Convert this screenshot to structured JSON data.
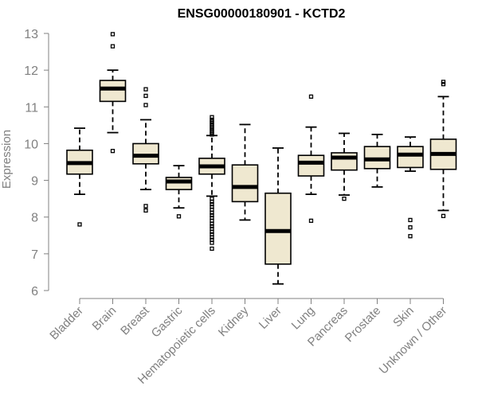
{
  "chart_data": {
    "type": "boxplot",
    "title": "ENSG00000180901 - KCTD2",
    "xlabel": "",
    "ylabel": "Expression",
    "ylim": [
      6,
      13
    ],
    "yticks": [
      6,
      7,
      8,
      9,
      10,
      11,
      12,
      13
    ],
    "categories": [
      "Bladder",
      "Brain",
      "Breast",
      "Gastric",
      "Hematopoietic cells",
      "Kidney",
      "Liver",
      "Lung",
      "Pancreas",
      "Prostate",
      "Skin",
      "Unknown / Other"
    ],
    "boxes": [
      {
        "name": "Bladder",
        "whisker_low": 8.62,
        "q1": 9.17,
        "median": 9.47,
        "q3": 9.82,
        "whisker_high": 10.42,
        "outliers": [
          7.8
        ]
      },
      {
        "name": "Brain",
        "whisker_low": 10.3,
        "q1": 11.15,
        "median": 11.5,
        "q3": 11.72,
        "whisker_high": 12.0,
        "outliers": [
          12.98,
          12.65,
          9.8
        ]
      },
      {
        "name": "Breast",
        "whisker_low": 8.75,
        "q1": 9.45,
        "median": 9.67,
        "q3": 10.0,
        "whisker_high": 10.65,
        "outliers": [
          11.48,
          11.3,
          11.05,
          8.3,
          8.18
        ]
      },
      {
        "name": "Gastric",
        "whisker_low": 8.25,
        "q1": 8.75,
        "median": 8.97,
        "q3": 9.08,
        "whisker_high": 9.4,
        "outliers": [
          8.02
        ]
      },
      {
        "name": "Hematopoietic cells",
        "whisker_low": 8.57,
        "q1": 9.17,
        "median": 9.38,
        "q3": 9.6,
        "whisker_high": 10.22,
        "outliers": [
          10.72,
          10.65,
          10.6,
          10.55,
          10.5,
          10.45,
          10.4,
          10.35,
          10.3,
          10.25,
          8.5,
          8.42,
          8.35,
          8.28,
          8.2,
          8.12,
          8.05,
          7.98,
          7.9,
          7.82,
          7.75,
          7.68,
          7.6,
          7.53,
          7.45,
          7.38,
          7.3,
          7.14
        ]
      },
      {
        "name": "Kidney",
        "whisker_low": 7.92,
        "q1": 8.42,
        "median": 8.82,
        "q3": 9.42,
        "whisker_high": 10.52,
        "outliers": []
      },
      {
        "name": "Liver",
        "whisker_low": 6.18,
        "q1": 6.72,
        "median": 7.62,
        "q3": 8.65,
        "whisker_high": 9.88,
        "outliers": []
      },
      {
        "name": "Lung",
        "whisker_low": 8.62,
        "q1": 9.12,
        "median": 9.48,
        "q3": 9.68,
        "whisker_high": 10.45,
        "outliers": [
          11.28,
          7.9
        ]
      },
      {
        "name": "Pancreas",
        "whisker_low": 8.6,
        "q1": 9.28,
        "median": 9.62,
        "q3": 9.75,
        "whisker_high": 10.28,
        "outliers": [
          8.5
        ]
      },
      {
        "name": "Prostate",
        "whisker_low": 8.82,
        "q1": 9.32,
        "median": 9.57,
        "q3": 9.92,
        "whisker_high": 10.25,
        "outliers": []
      },
      {
        "name": "Skin",
        "whisker_low": 9.25,
        "q1": 9.35,
        "median": 9.7,
        "q3": 9.92,
        "whisker_high": 10.18,
        "outliers": [
          7.92,
          7.72,
          7.48
        ]
      },
      {
        "name": "Unknown / Other",
        "whisker_low": 8.18,
        "q1": 9.3,
        "median": 9.72,
        "q3": 10.12,
        "whisker_high": 11.28,
        "outliers": [
          11.68,
          11.62,
          8.03
        ]
      }
    ],
    "colors": {
      "box_fill": "#efe8d0",
      "stroke": "#000000",
      "axis_text": "#808080"
    }
  }
}
